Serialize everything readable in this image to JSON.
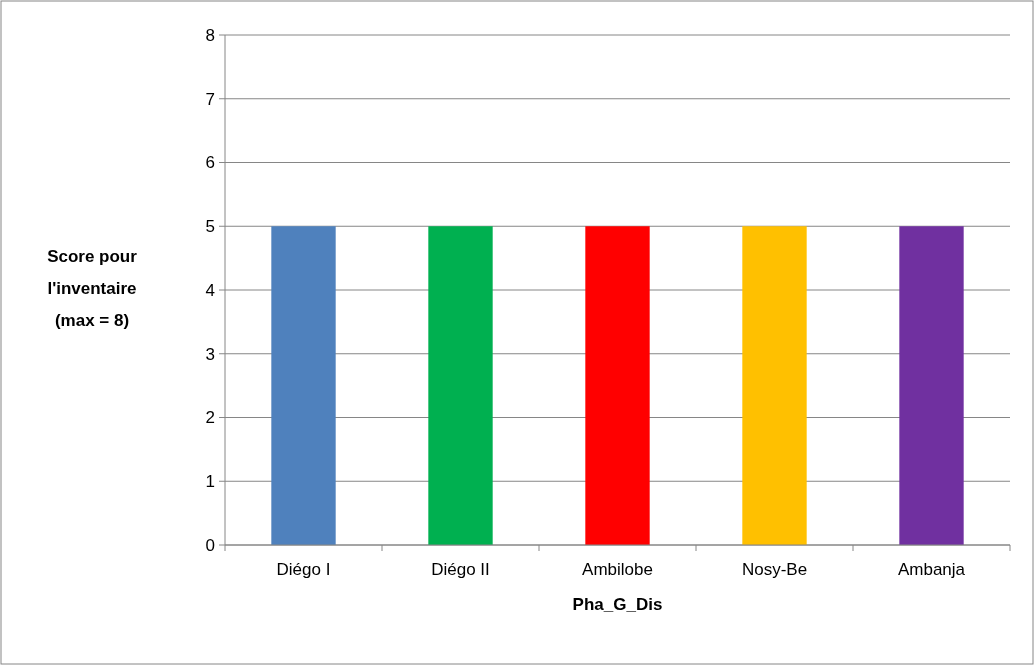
{
  "chart_data": {
    "type": "bar",
    "xlabel": "Pha_G_Dis",
    "ylabel": "Score pour l'inventaire (max = 8)",
    "categories": [
      "Diégo I",
      "Diégo II",
      "Ambilobe",
      "Nosy-Be",
      "Ambanja"
    ],
    "values": [
      5,
      5,
      5,
      5,
      5
    ],
    "colors": [
      "#4f81bd",
      "#00b050",
      "#ff0000",
      "#ffc000",
      "#7030a0"
    ],
    "ylim": [
      0,
      8
    ],
    "yticks": [
      0,
      1,
      2,
      3,
      4,
      5,
      6,
      7,
      8
    ],
    "grid": "y"
  }
}
